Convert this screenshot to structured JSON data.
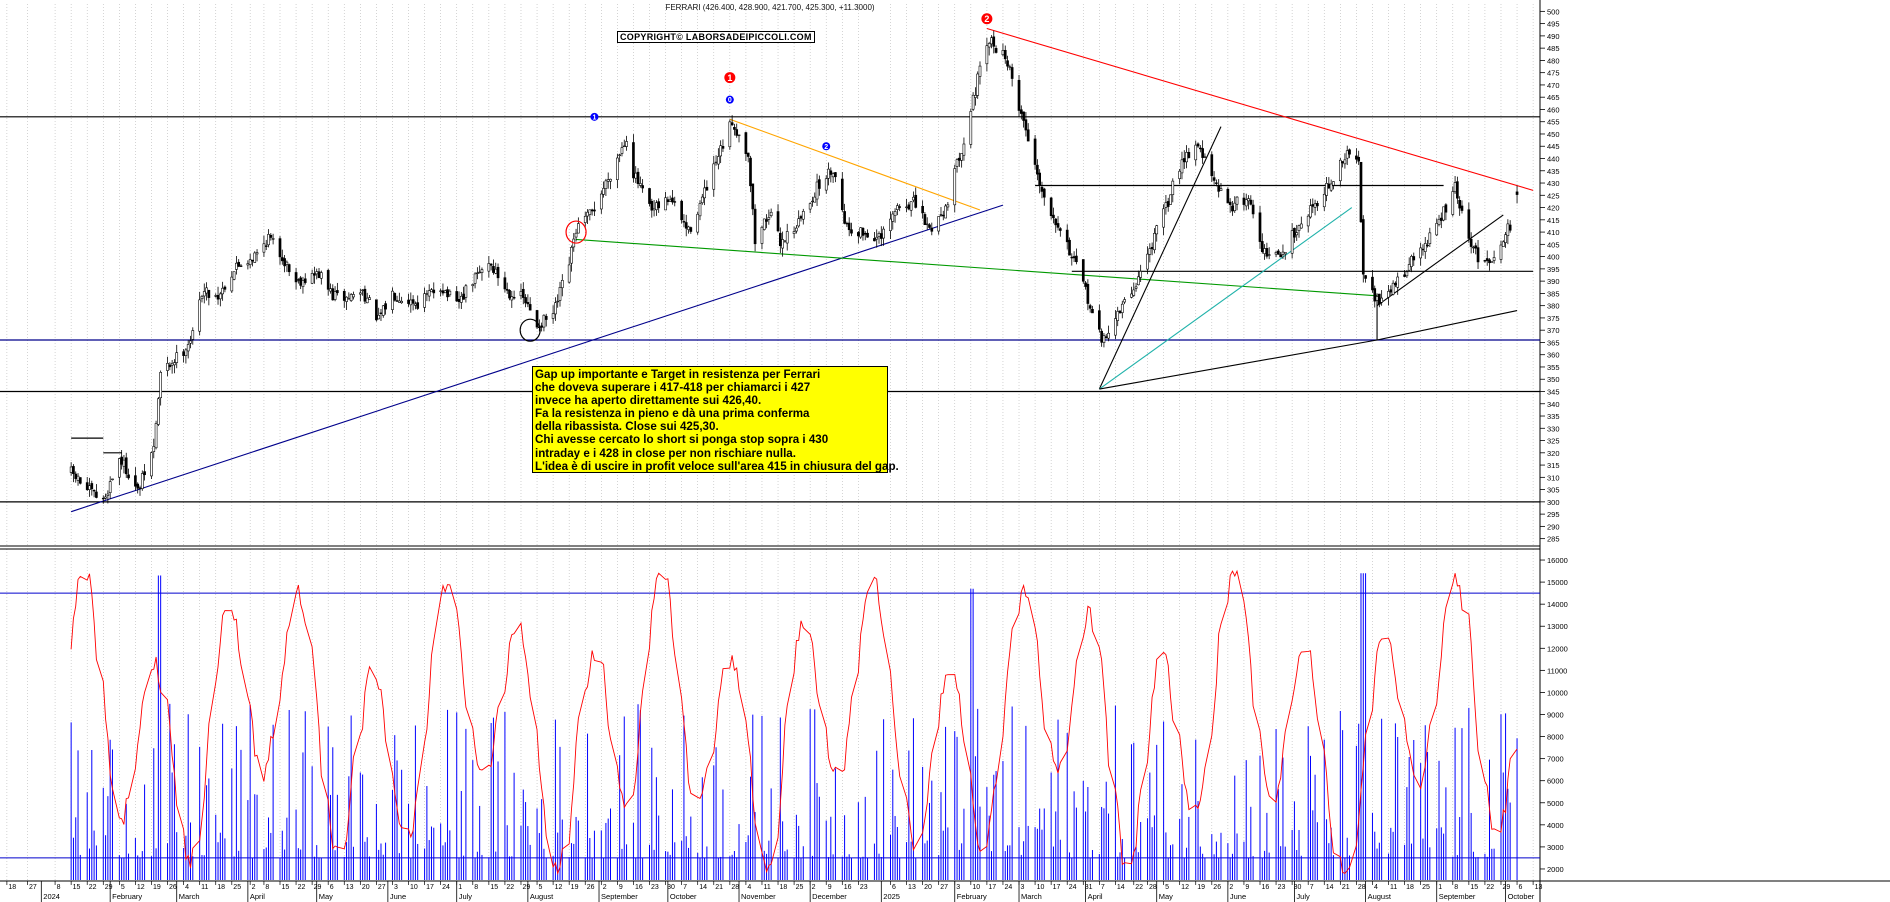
{
  "header": {
    "title": "FERRARI (426.400, 428.900, 421.700, 425.300, +11.3000)",
    "copyright": "COPYRIGHT© LABORSADEIPICCOLI.COM"
  },
  "note_lines": [
    "Gap up importante e Target in resistenza per Ferrari",
    "che doveva superare i 417-418 per chiamarci i 427",
    "invece ha aperto direttamente sui 426,40.",
    "Fa la resistenza in pieno e dà una prima conferma",
    "della ribassista. Close sui 425,30.",
    "Chi avesse cercato lo short si ponga stop sopra i 430",
    "intraday e i 428 in close per non rischiare nulla.",
    "L'idea è di uscire in profit veloce sull'area 415 in chiusura del gap."
  ],
  "wave_markers": [
    {
      "label": "1",
      "x": "2024-08-30",
      "y": 457,
      "color": "#0000ff",
      "size": "small"
    },
    {
      "label": "0",
      "x": "2024-10-28",
      "y": 464,
      "color": "#0000ff",
      "size": "small"
    },
    {
      "label": "1",
      "x": "2024-10-28",
      "y": 473,
      "color": "#ff0000",
      "size": "big"
    },
    {
      "label": "2",
      "x": "2024-12-09",
      "y": 445,
      "color": "#0000ff",
      "size": "small"
    },
    {
      "label": "2",
      "x": "2025-02-17",
      "y": 497,
      "color": "#ff0000",
      "size": "big"
    }
  ],
  "colors": {
    "candles": "#000000",
    "price_grid": "#b8b8b8",
    "support_blue": "#00008b",
    "resistance_red": "#ff0000",
    "trend_green": "#009900",
    "trend_orange": "#ffa500",
    "trend_teal": "#20b2aa",
    "volume_bars": "#0000ff",
    "oscillator": "#ff0000",
    "note_background": "#ffff00"
  },
  "chart_data": [
    {
      "type": "candlestick",
      "title": "FERRARI (426.400, 428.900, 421.700, 425.300, +11.3000)",
      "x_range": [
        "2024-01-15",
        "2025-10-13"
      ],
      "ylim": [
        282,
        503
      ],
      "y_ticks": [
        285,
        290,
        295,
        300,
        305,
        310,
        315,
        320,
        325,
        330,
        335,
        340,
        345,
        350,
        355,
        360,
        365,
        370,
        375,
        380,
        385,
        390,
        395,
        400,
        405,
        410,
        415,
        420,
        425,
        430,
        435,
        440,
        445,
        450,
        455,
        460,
        465,
        470,
        475,
        480,
        485,
        490,
        495,
        500
      ],
      "last_bar": {
        "open": 426.4,
        "high": 428.9,
        "low": 421.7,
        "close": 425.3,
        "change": 11.3
      },
      "price_anchors": [
        [
          "2024-01-15",
          312
        ],
        [
          "2024-01-22",
          305
        ],
        [
          "2024-01-29",
          300
        ],
        [
          "2024-02-05",
          318
        ],
        [
          "2024-02-09",
          312
        ],
        [
          "2024-02-13",
          304
        ],
        [
          "2024-02-20",
          322
        ],
        [
          "2024-02-23",
          352
        ],
        [
          "2024-03-04",
          362
        ],
        [
          "2024-03-08",
          368
        ],
        [
          "2024-03-12",
          386
        ],
        [
          "2024-03-19",
          384
        ],
        [
          "2024-03-27",
          396
        ],
        [
          "2024-04-05",
          401
        ],
        [
          "2024-04-10",
          408
        ],
        [
          "2024-04-16",
          400
        ],
        [
          "2024-04-22",
          390
        ],
        [
          "2024-05-02",
          393
        ],
        [
          "2024-05-08",
          384
        ],
        [
          "2024-05-14",
          383
        ],
        [
          "2024-05-21",
          386
        ],
        [
          "2024-05-28",
          374
        ],
        [
          "2024-06-03",
          385
        ],
        [
          "2024-06-14",
          381
        ],
        [
          "2024-06-24",
          388
        ],
        [
          "2024-07-01",
          380
        ],
        [
          "2024-07-08",
          390
        ],
        [
          "2024-07-15",
          398
        ],
        [
          "2024-07-23",
          386
        ],
        [
          "2024-07-30",
          383
        ],
        [
          "2024-08-05",
          372
        ],
        [
          "2024-08-12",
          376
        ],
        [
          "2024-08-19",
          397
        ],
        [
          "2024-08-22",
          411
        ],
        [
          "2024-08-29",
          418
        ],
        [
          "2024-09-06",
          434
        ],
        [
          "2024-09-13",
          449
        ],
        [
          "2024-09-16",
          434
        ],
        [
          "2024-09-24",
          418
        ],
        [
          "2024-10-02",
          424
        ],
        [
          "2024-10-10",
          410
        ],
        [
          "2024-10-18",
          428
        ],
        [
          "2024-10-29",
          455
        ],
        [
          "2024-11-05",
          442
        ],
        [
          "2024-11-08",
          406
        ],
        [
          "2024-11-14",
          418
        ],
        [
          "2024-11-19",
          406
        ],
        [
          "2024-11-27",
          414
        ],
        [
          "2024-12-05",
          428
        ],
        [
          "2024-12-12",
          436
        ],
        [
          "2024-12-18",
          412
        ],
        [
          "2025-01-02",
          407
        ],
        [
          "2025-01-09",
          420
        ],
        [
          "2025-01-16",
          422
        ],
        [
          "2025-01-23",
          411
        ],
        [
          "2025-01-30",
          420
        ],
        [
          "2025-02-07",
          448
        ],
        [
          "2025-02-13",
          472
        ],
        [
          "2025-02-18",
          488
        ],
        [
          "2025-02-25",
          482
        ],
        [
          "2025-03-05",
          455
        ],
        [
          "2025-03-14",
          424
        ],
        [
          "2025-03-21",
          412
        ],
        [
          "2025-04-01",
          386
        ],
        [
          "2025-04-08",
          365
        ],
        [
          "2025-04-14",
          375
        ],
        [
          "2025-04-22",
          387
        ],
        [
          "2025-04-29",
          403
        ],
        [
          "2025-05-06",
          420
        ],
        [
          "2025-05-13",
          440
        ],
        [
          "2025-05-20",
          446
        ],
        [
          "2025-05-28",
          428
        ],
        [
          "2025-06-04",
          421
        ],
        [
          "2025-06-11",
          424
        ],
        [
          "2025-06-18",
          401
        ],
        [
          "2025-06-25",
          400
        ],
        [
          "2025-07-02",
          412
        ],
        [
          "2025-07-10",
          422
        ],
        [
          "2025-07-17",
          430
        ],
        [
          "2025-07-24",
          442
        ],
        [
          "2025-07-29",
          438
        ],
        [
          "2025-07-31",
          395
        ],
        [
          "2025-08-07",
          380
        ],
        [
          "2025-08-14",
          389
        ],
        [
          "2025-08-20",
          397
        ],
        [
          "2025-08-28",
          406
        ],
        [
          "2025-09-04",
          418
        ],
        [
          "2025-09-09",
          428
        ],
        [
          "2025-09-15",
          406
        ],
        [
          "2025-09-22",
          396
        ],
        [
          "2025-09-29",
          406
        ],
        [
          "2025-10-03",
          413
        ],
        [
          "2025-10-06",
          425
        ]
      ],
      "horizontal_lines": [
        {
          "y": 457,
          "color": "#000000"
        },
        {
          "y": 429,
          "x": [
            "2025-03-10",
            "2025-09-04"
          ],
          "color": "#000000"
        },
        {
          "y": 394,
          "x": [
            "2025-03-26",
            "2025-10-13"
          ],
          "color": "#000000"
        },
        {
          "y": 366,
          "color": "#00008b"
        },
        {
          "y": 345,
          "color": "#000000"
        },
        {
          "y": 300,
          "color": "#000000"
        },
        {
          "y": 326,
          "x": [
            "2024-01-15",
            "2024-01-29"
          ],
          "color": "#000000"
        },
        {
          "y": 320,
          "x": [
            "2024-01-29",
            "2024-02-06"
          ],
          "color": "#000000"
        }
      ],
      "trend_lines": [
        {
          "color": "#ff0000",
          "points": [
            [
              "2025-02-17",
              493
            ],
            [
              "2025-10-13",
              427
            ]
          ]
        },
        {
          "color": "#00008b",
          "points": [
            [
              "2024-01-15",
              296
            ],
            [
              "2025-02-24",
              421
            ]
          ]
        },
        {
          "color": "#009900",
          "points": [
            [
              "2024-08-22",
              407
            ],
            [
              "2025-08-06",
              384
            ]
          ]
        },
        {
          "color": "#ffa500",
          "points": [
            [
              "2024-10-28",
              456
            ],
            [
              "2025-02-14",
              419
            ]
          ]
        },
        {
          "color": "#000000",
          "points": [
            [
              "2025-04-07",
              346
            ],
            [
              "2025-05-30",
              453
            ]
          ]
        },
        {
          "color": "#20b2aa",
          "points": [
            [
              "2025-04-07",
              346
            ],
            [
              "2025-07-26",
              420
            ]
          ]
        },
        {
          "color": "#000000",
          "points": [
            [
              "2025-04-07",
              346
            ],
            [
              "2025-08-06",
              366
            ]
          ]
        },
        {
          "color": "#000000",
          "points": [
            [
              "2025-08-06",
              366
            ],
            [
              "2025-10-06",
              378
            ]
          ]
        },
        {
          "color": "#000000",
          "points": [
            [
              "2025-08-06",
              366
            ],
            [
              "2025-08-06",
              385
            ]
          ]
        },
        {
          "color": "#000000",
          "points": [
            [
              "2025-08-06",
              380
            ],
            [
              "2025-09-30",
              417
            ]
          ]
        }
      ],
      "highlight_circles": [
        {
          "x": "2024-08-22",
          "y": 410,
          "color": "#ff0000"
        },
        {
          "x": "2024-08-02",
          "y": 370,
          "color": "#000000"
        }
      ]
    },
    {
      "type": "bar+line",
      "ylim": [
        1500,
        16500
      ],
      "y_ticks": [
        2000,
        3000,
        4000,
        5000,
        6000,
        7000,
        8000,
        9000,
        10000,
        11000,
        12000,
        13000,
        14000,
        15000,
        16000
      ],
      "reference_lines": [
        14500,
        2500
      ],
      "series": [
        {
          "kind": "volume_bars",
          "color": "#0000ff",
          "typical_range": [
            2500,
            7000
          ],
          "spikes": [
            [
              "2024-02-23",
              15300
            ],
            [
              "2025-02-10",
              14700
            ],
            [
              "2025-07-31",
              15400
            ]
          ]
        },
        {
          "kind": "oscillator_line",
          "color": "#ff0000",
          "range": [
            1800,
            15500
          ]
        }
      ]
    }
  ],
  "x_axis": {
    "tick_dates": [
      "2023-12-18",
      "2023-12-27",
      "2024-01-08",
      "2024-01-15",
      "2024-01-22",
      "2024-01-29",
      "2024-02-05",
      "2024-02-12",
      "2024-02-19",
      "2024-02-26",
      "2024-03-04",
      "2024-03-11",
      "2024-03-18",
      "2024-03-25",
      "2024-04-02",
      "2024-04-08",
      "2024-04-15",
      "2024-04-22",
      "2024-04-29",
      "2024-05-06",
      "2024-05-13",
      "2024-05-20",
      "2024-05-27",
      "2024-06-03",
      "2024-06-10",
      "2024-06-17",
      "2024-06-24",
      "2024-07-01",
      "2024-07-08",
      "2024-07-15",
      "2024-07-22",
      "2024-07-29",
      "2024-08-05",
      "2024-08-12",
      "2024-08-19",
      "2024-08-26",
      "2024-09-02",
      "2024-09-09",
      "2024-09-16",
      "2024-09-23",
      "2024-09-30",
      "2024-10-07",
      "2024-10-14",
      "2024-10-21",
      "2024-10-28",
      "2024-11-04",
      "2024-11-11",
      "2024-11-18",
      "2024-11-25",
      "2024-12-02",
      "2024-12-09",
      "2024-12-16",
      "2024-12-23",
      "2025-01-06",
      "2025-01-13",
      "2025-01-20",
      "2025-01-27",
      "2025-02-03",
      "2025-02-10",
      "2025-02-17",
      "2025-02-24",
      "2025-03-03",
      "2025-03-10",
      "2025-03-17",
      "2025-03-24",
      "2025-03-31",
      "2025-04-07",
      "2025-04-14",
      "2025-04-22",
      "2025-04-28",
      "2025-05-05",
      "2025-05-12",
      "2025-05-19",
      "2025-05-26",
      "2025-06-02",
      "2025-06-09",
      "2025-06-16",
      "2025-06-23",
      "2025-06-30",
      "2025-07-07",
      "2025-07-14",
      "2025-07-21",
      "2025-07-28",
      "2025-08-04",
      "2025-08-11",
      "2025-08-18",
      "2025-08-25",
      "2025-09-01",
      "2025-09-08",
      "2025-09-15",
      "2025-09-22",
      "2025-09-29",
      "2025-10-06",
      "2025-10-13"
    ],
    "day_labels": [
      "18",
      "27",
      "8",
      "15",
      "22",
      "29",
      "5",
      "12",
      "19",
      "26",
      "4",
      "11",
      "18",
      "25",
      "2",
      "8",
      "15",
      "22",
      "29",
      "6",
      "13",
      "20",
      "27",
      "3",
      "10",
      "17",
      "24",
      "1",
      "8",
      "15",
      "22",
      "29",
      "5",
      "12",
      "19",
      "26",
      "2",
      "9",
      "16",
      "23",
      "30",
      "7",
      "14",
      "21",
      "28",
      "4",
      "11",
      "18",
      "25",
      "2",
      "9",
      "16",
      "23",
      "6",
      "13",
      "20",
      "27",
      "3",
      "10",
      "17",
      "24",
      "3",
      "10",
      "17",
      "24",
      "31",
      "7",
      "14",
      "22",
      "28",
      "5",
      "12",
      "19",
      "26",
      "2",
      "9",
      "16",
      "23",
      "30",
      "7",
      "14",
      "21",
      "28",
      "4",
      "11",
      "18",
      "25",
      "1",
      "8",
      "15",
      "22",
      "29",
      "6",
      "13"
    ],
    "month_labels": [
      {
        "label": "2024",
        "x": "2024-01-02"
      },
      {
        "label": "February",
        "x": "2024-02-01"
      },
      {
        "label": "March",
        "x": "2024-03-01"
      },
      {
        "label": "April",
        "x": "2024-04-01"
      },
      {
        "label": "May",
        "x": "2024-05-01"
      },
      {
        "label": "June",
        "x": "2024-06-01"
      },
      {
        "label": "July",
        "x": "2024-07-01"
      },
      {
        "label": "August",
        "x": "2024-08-01"
      },
      {
        "label": "September",
        "x": "2024-09-01"
      },
      {
        "label": "October",
        "x": "2024-10-01"
      },
      {
        "label": "November",
        "x": "2024-11-01"
      },
      {
        "label": "December",
        "x": "2024-12-02"
      },
      {
        "label": "2025",
        "x": "2025-01-02"
      },
      {
        "label": "February",
        "x": "2025-02-03"
      },
      {
        "label": "March",
        "x": "2025-03-03"
      },
      {
        "label": "April",
        "x": "2025-04-01"
      },
      {
        "label": "May",
        "x": "2025-05-02"
      },
      {
        "label": "June",
        "x": "2025-06-02"
      },
      {
        "label": "July",
        "x": "2025-07-01"
      },
      {
        "label": "August",
        "x": "2025-08-01"
      },
      {
        "label": "September",
        "x": "2025-09-01"
      },
      {
        "label": "October",
        "x": "2025-10-01"
      }
    ]
  }
}
